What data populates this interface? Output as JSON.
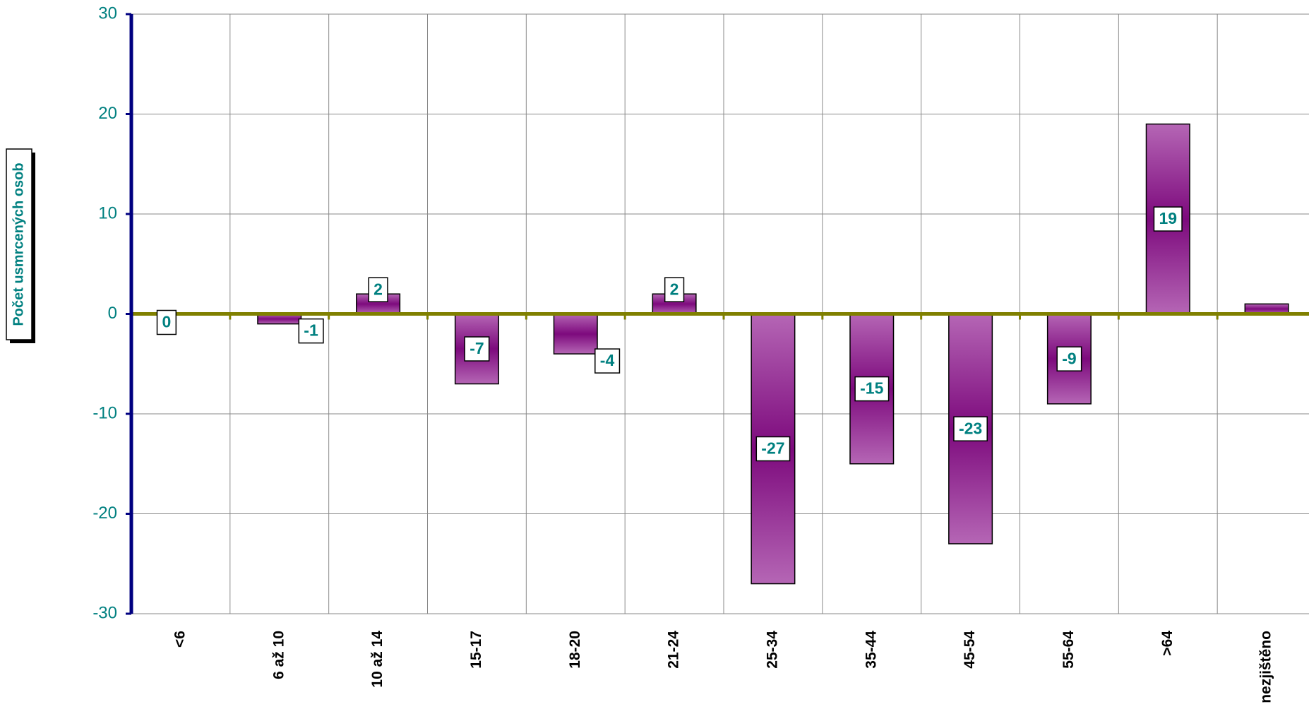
{
  "chart_data": {
    "type": "bar",
    "y_axis_label": "Počet usmrcených osob",
    "categories": [
      "<6",
      "6 až 10",
      "10 až 14",
      "15-17",
      "18-20",
      "21-24",
      "25-34",
      "35-44",
      "45-54",
      "55-64",
      ">64",
      "nezjištěno"
    ],
    "values": [
      0,
      -1,
      2,
      -7,
      -4,
      2,
      -27,
      -15,
      -23,
      -9,
      19,
      1
    ],
    "color": "#993399",
    "ylim": [
      -30,
      30
    ],
    "yticks": [
      -30,
      -20,
      -10,
      0,
      10,
      20,
      30
    ],
    "grid": true
  }
}
